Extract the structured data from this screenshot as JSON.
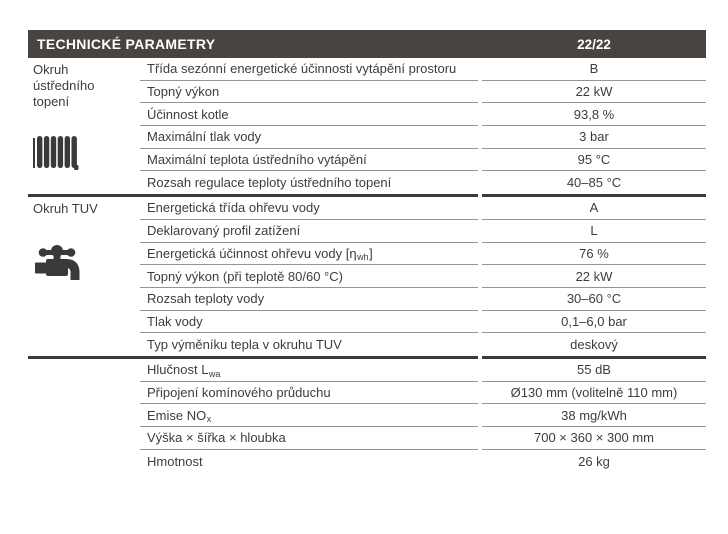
{
  "header": {
    "title": "TECHNICKÉ PARAMETRY",
    "model": "22/22"
  },
  "colors": {
    "header_bg": "#484442",
    "heavy_line": "#3a3a3a",
    "thin_line": "#949494",
    "text": "#3d3d3d",
    "icon": "#3a3a3a"
  },
  "sections": [
    {
      "side_label": "Okruh ústředního topení",
      "side_icon": "radiator-icon",
      "rows": [
        {
          "param": "Třída sezónní energetické účinnosti vytápění prostoru",
          "param_sub": "",
          "param_suffix": "",
          "value": "B"
        },
        {
          "param": "Topný výkon",
          "param_sub": "",
          "param_suffix": "",
          "value": "22 kW"
        },
        {
          "param": "Účinnost kotle",
          "param_sub": "",
          "param_suffix": "",
          "value": "93,8 %"
        },
        {
          "param": "Maximální tlak vody",
          "param_sub": "",
          "param_suffix": "",
          "value": "3 bar"
        },
        {
          "param": "Maximální teplota ústředního vytápění",
          "param_sub": "",
          "param_suffix": "",
          "value": "95 °C"
        },
        {
          "param": "Rozsah regulace teploty ústředního topení",
          "param_sub": "",
          "param_suffix": "",
          "value": "40–85 °C"
        }
      ]
    },
    {
      "side_label": "Okruh TUV",
      "side_icon": "faucet-icon",
      "rows": [
        {
          "param": "Energetická třída ohřevu vody",
          "param_sub": "",
          "param_suffix": "",
          "value": "A"
        },
        {
          "param": "Deklarovaný profil zatížení",
          "param_sub": "",
          "param_suffix": "",
          "value": "L"
        },
        {
          "param": "Energetická účinnost ohřevu vody [η",
          "param_sub": "wh",
          "param_suffix": "]",
          "value": "76 %"
        },
        {
          "param": "Topný výkon (při teplotě 80/60 °C)",
          "param_sub": "",
          "param_suffix": "",
          "value": "22 kW"
        },
        {
          "param": "Rozsah teploty vody",
          "param_sub": "",
          "param_suffix": "",
          "value": "30–60 °C"
        },
        {
          "param": "Tlak vody",
          "param_sub": "",
          "param_suffix": "",
          "value": "0,1–6,0 bar"
        },
        {
          "param": "Typ výměníku tepla v okruhu TUV",
          "param_sub": "",
          "param_suffix": "",
          "value": "deskový"
        }
      ]
    },
    {
      "side_label": "",
      "side_icon": "",
      "rows": [
        {
          "param": "Hlučnost L",
          "param_sub": "wa",
          "param_suffix": "",
          "value": "55 dB"
        },
        {
          "param": "Připojení komínového průduchu",
          "param_sub": "",
          "param_suffix": "",
          "value": "Ø130 mm (volitelně 110 mm)"
        },
        {
          "param": "Emise NO",
          "param_sub": "x",
          "param_suffix": "",
          "value": "38 mg/kWh"
        },
        {
          "param": "Výška × šířka × hloubka",
          "param_sub": "",
          "param_suffix": "",
          "value": "700 × 360 × 300 mm"
        },
        {
          "param": "Hmotnost",
          "param_sub": "",
          "param_suffix": "",
          "value": "26 kg"
        }
      ]
    }
  ]
}
